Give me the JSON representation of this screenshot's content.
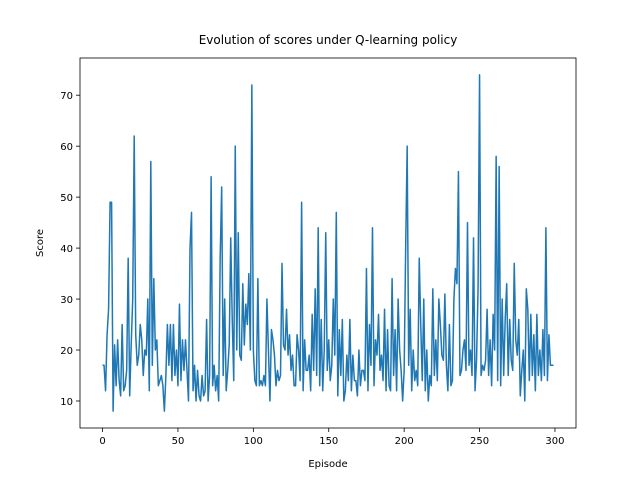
{
  "chart_data": {
    "type": "line",
    "title": "Evolution of scores under Q-learning policy",
    "xlabel": "Episode",
    "ylabel": "Score",
    "color": "#1f77b4",
    "x": [
      0,
      1,
      2,
      3,
      4,
      5,
      6,
      7,
      8,
      9,
      10,
      11,
      12,
      13,
      14,
      15,
      16,
      17,
      18,
      19,
      20,
      21,
      22,
      23,
      24,
      25,
      26,
      27,
      28,
      29,
      30,
      31,
      32,
      33,
      34,
      35,
      36,
      37,
      38,
      39,
      40,
      41,
      42,
      43,
      44,
      45,
      46,
      47,
      48,
      49,
      50,
      51,
      52,
      53,
      54,
      55,
      56,
      57,
      58,
      59,
      60,
      61,
      62,
      63,
      64,
      65,
      66,
      67,
      68,
      69,
      70,
      71,
      72,
      73,
      74,
      75,
      76,
      77,
      78,
      79,
      80,
      81,
      82,
      83,
      84,
      85,
      86,
      87,
      88,
      89,
      90,
      91,
      92,
      93,
      94,
      95,
      96,
      97,
      98,
      99,
      100,
      101,
      102,
      103,
      104,
      105,
      106,
      107,
      108,
      109,
      110,
      111,
      112,
      113,
      114,
      115,
      116,
      117,
      118,
      119,
      120,
      121,
      122,
      123,
      124,
      125,
      126,
      127,
      128,
      129,
      130,
      131,
      132,
      133,
      134,
      135,
      136,
      137,
      138,
      139,
      140,
      141,
      142,
      143,
      144,
      145,
      146,
      147,
      148,
      149,
      150,
      151,
      152,
      153,
      154,
      155,
      156,
      157,
      158,
      159,
      160,
      161,
      162,
      163,
      164,
      165,
      166,
      167,
      168,
      169,
      170,
      171,
      172,
      173,
      174,
      175,
      176,
      177,
      178,
      179,
      180,
      181,
      182,
      183,
      184,
      185,
      186,
      187,
      188,
      189,
      190,
      191,
      192,
      193,
      194,
      195,
      196,
      197,
      198,
      199,
      200,
      201,
      202,
      203,
      204,
      205,
      206,
      207,
      208,
      209,
      210,
      211,
      212,
      213,
      214,
      215,
      216,
      217,
      218,
      219,
      220,
      221,
      222,
      223,
      224,
      225,
      226,
      227,
      228,
      229,
      230,
      231,
      232,
      233,
      234,
      235,
      236,
      237,
      238,
      239,
      240,
      241,
      242,
      243,
      244,
      245,
      246,
      247,
      248,
      249,
      250,
      251,
      252,
      253,
      254,
      255,
      256,
      257,
      258,
      259,
      260,
      261,
      262,
      263,
      264,
      265,
      266,
      267,
      268,
      269,
      270,
      271,
      272,
      273,
      274,
      275,
      276,
      277,
      278,
      279,
      280,
      281,
      282,
      283,
      284,
      285,
      286,
      287,
      288,
      289,
      290,
      291,
      292,
      293,
      294,
      295,
      296,
      297,
      298,
      299
    ],
    "values": [
      17,
      17,
      12,
      23,
      28,
      49,
      49,
      8,
      21,
      13,
      22,
      14,
      11,
      25,
      12,
      13,
      16,
      38,
      11,
      21,
      30,
      62,
      23,
      17,
      19,
      25,
      22,
      15,
      20,
      19,
      30,
      12,
      57,
      17,
      34,
      20,
      22,
      13,
      14,
      15,
      13,
      8,
      15,
      25,
      17,
      25,
      14,
      25,
      15,
      20,
      13,
      29,
      14,
      22,
      16,
      22,
      16,
      10,
      40,
      47,
      12,
      17,
      10,
      16,
      11,
      10,
      15,
      11,
      12,
      26,
      10,
      15,
      54,
      13,
      17,
      12,
      15,
      10,
      38,
      52,
      15,
      30,
      12,
      16,
      21,
      42,
      26,
      14,
      60,
      20,
      43,
      19,
      18,
      33,
      21,
      29,
      25,
      35,
      20,
      72,
      20,
      14,
      13,
      34,
      13,
      14,
      13,
      15,
      13,
      30,
      20,
      10,
      24,
      22,
      19,
      13,
      16,
      14,
      15,
      37,
      21,
      20,
      28,
      19,
      23,
      16,
      19,
      13,
      13,
      23,
      20,
      14,
      49,
      12,
      22,
      16,
      16,
      19,
      12,
      27,
      16,
      32,
      15,
      44,
      13,
      26,
      12,
      20,
      43,
      16,
      22,
      14,
      17,
      30,
      19,
      47,
      11,
      24,
      15,
      26,
      10,
      12,
      19,
      14,
      26,
      12,
      19,
      14,
      14,
      11,
      20,
      13,
      16,
      16,
      14,
      36,
      12,
      25,
      17,
      44,
      13,
      22,
      19,
      27,
      16,
      19,
      14,
      28,
      12,
      24,
      13,
      12,
      34,
      15,
      24,
      12,
      30,
      20,
      16,
      10,
      16,
      40,
      60,
      17,
      28,
      12,
      20,
      14,
      16,
      13,
      38,
      25,
      14,
      30,
      12,
      20,
      10,
      15,
      13,
      32,
      15,
      22,
      14,
      30,
      25,
      19,
      18,
      31,
      17,
      12,
      25,
      13,
      14,
      30,
      36,
      33,
      55,
      15,
      16,
      20,
      22,
      16,
      45,
      17,
      20,
      15,
      42,
      12,
      18,
      32,
      74,
      15,
      17,
      16,
      18,
      28,
      15,
      22,
      13,
      27,
      20,
      58,
      14,
      56,
      13,
      30,
      15,
      26,
      33,
      15,
      26,
      18,
      16,
      37,
      22,
      19,
      26,
      11,
      16,
      20,
      10,
      32,
      28,
      14,
      27,
      15,
      23,
      12,
      27,
      15,
      20,
      14,
      24,
      15,
      44,
      14,
      23,
      17,
      17,
      17
    ],
    "xlim": [
      -14.95,
      313.95
    ],
    "ylim": [
      4.7,
      77.3
    ],
    "xticks": [
      0,
      50,
      100,
      150,
      200,
      250,
      300
    ],
    "yticks": [
      10,
      20,
      30,
      40,
      50,
      60,
      70
    ]
  }
}
